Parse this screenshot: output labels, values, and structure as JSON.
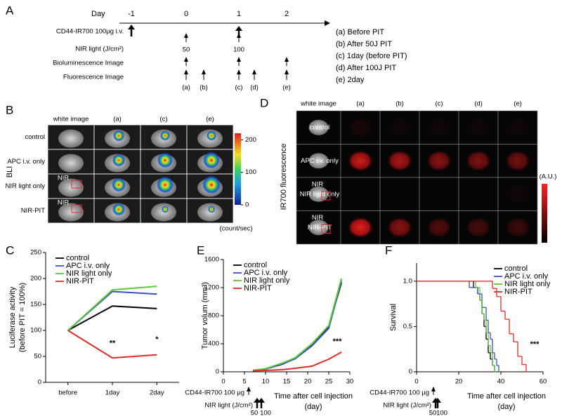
{
  "panel_a": {
    "label": "A",
    "day_label": "Day",
    "days": [
      "-1",
      "0",
      "1",
      "2"
    ],
    "rows": [
      "CD44-IR700 100µg i.v.",
      "NIR light (J/cm²)",
      "Bioluminescence Image",
      "Fluorescence Image"
    ],
    "doses": [
      "50",
      "100"
    ],
    "images": [
      "(a)",
      "(b)",
      "(c)",
      "(d)",
      "(e)"
    ],
    "legend": [
      "(a) Before PIT",
      "(b) After 50J PIT",
      "(c) 1day (before PIT)",
      "(d) After 100J PIT",
      "(e) 2day"
    ]
  },
  "panel_b": {
    "label": "B",
    "side_label": "BLI",
    "columns": [
      "white image",
      "(a)",
      "(c)",
      "(e)"
    ],
    "rows": [
      "control",
      "APC i.v. only",
      "NIR light only",
      "NIR-PIT"
    ],
    "region_label": "NIR",
    "colorbar_lim": [
      0,
      220
    ],
    "colorbar_ticks": [
      200,
      100,
      0
    ],
    "colorbar_unit": "(count/sec)"
  },
  "panel_d": {
    "label": "D",
    "side_label": "IR700 fluorescence",
    "columns": [
      "white image",
      "(a)",
      "(b)",
      "(c)",
      "(d)",
      "(e)"
    ],
    "rows": [
      "control",
      "APC i.v. only",
      "NIR light only",
      "NIR-PIT"
    ],
    "region_label": "NIR",
    "colorbar_unit": "(A.U.)"
  },
  "chart_data": [
    {
      "type": "line",
      "label": "C",
      "categories": [
        "before",
        "1day",
        "2day"
      ],
      "ylabel": [
        "Luciferase activity",
        "(before PIT = 100%)"
      ],
      "ylim": [
        0,
        250
      ],
      "yticks": [
        0,
        50,
        100,
        150,
        200,
        250
      ],
      "legend": "upper left",
      "series": [
        {
          "name": "control",
          "color": "#000000",
          "values": [
            100,
            147,
            142
          ]
        },
        {
          "name": "APC i.v. only",
          "color": "#3c4fc4",
          "values": [
            100,
            175,
            170
          ]
        },
        {
          "name": "NIR light only",
          "color": "#5cc83c",
          "values": [
            100,
            178,
            185
          ]
        },
        {
          "name": "NIR-PIT",
          "color": "#e02a2a",
          "values": [
            100,
            47,
            53
          ]
        }
      ],
      "annotations": [
        {
          "text": "**",
          "x": "1day",
          "y": 75
        },
        {
          "text": "*",
          "x": "2day",
          "y": 82
        }
      ]
    },
    {
      "type": "line",
      "label": "E",
      "x": [
        7,
        10,
        14,
        17,
        21,
        25,
        28
      ],
      "ylabel": [
        "Tumor volum (mm³)"
      ],
      "xlabel": [
        "Time after cell injection",
        "(day)"
      ],
      "xlim": [
        0,
        30
      ],
      "xticks": [
        0,
        5,
        10,
        15,
        20,
        25,
        30
      ],
      "ylim": [
        0,
        1600
      ],
      "yticks": [
        0,
        400,
        800,
        1200,
        1600
      ],
      "legend": "upper left",
      "series": [
        {
          "name": "control",
          "color": "#000000",
          "values": [
            20,
            40,
            110,
            190,
            380,
            650,
            1270
          ]
        },
        {
          "name": "APC i.v. only",
          "color": "#3c4fc4",
          "values": [
            20,
            40,
            115,
            185,
            370,
            620,
            1300
          ]
        },
        {
          "name": "NIR light only",
          "color": "#5cc83c",
          "values": [
            20,
            45,
            125,
            200,
            400,
            660,
            1330
          ]
        },
        {
          "name": "NIR-PIT",
          "color": "#e02a2a",
          "values": [
            15,
            20,
            30,
            50,
            80,
            180,
            280
          ]
        }
      ],
      "annotations": [
        {
          "text": "***",
          "x": 27,
          "y": 430
        }
      ],
      "schedule": {
        "injection_label": "CD44-IR700 100 µg",
        "light_label": "NIR light (J/cm²)",
        "injection_day": 6,
        "light_days": [
          8,
          9
        ],
        "light_doses": [
          "50",
          "100"
        ]
      }
    },
    {
      "type": "step",
      "label": "F",
      "ylabel": [
        "Survival"
      ],
      "xlabel": [
        "Time after cell injection",
        "(day)"
      ],
      "xlim": [
        0,
        60
      ],
      "xticks": [
        0,
        20,
        40,
        60
      ],
      "ylim": [
        0,
        1.2
      ],
      "yticks": [
        0,
        0.5,
        {
          "value": 1,
          "label": "1.0"
        }
      ],
      "legend": "upper right",
      "series": [
        {
          "name": "control",
          "color": "#000000",
          "x": [
            0,
            27,
            29,
            30,
            31,
            32,
            33,
            34,
            35,
            36,
            37
          ],
          "values": [
            1,
            0.93,
            0.86,
            0.79,
            0.64,
            0.5,
            0.36,
            0.21,
            0.14,
            0.07,
            0
          ]
        },
        {
          "name": "APC i.v. only",
          "color": "#3c4fc4",
          "x": [
            0,
            25,
            29,
            31,
            33,
            34,
            35,
            36,
            37,
            38,
            39
          ],
          "values": [
            1,
            0.93,
            0.86,
            0.71,
            0.57,
            0.43,
            0.36,
            0.21,
            0.14,
            0.07,
            0
          ]
        },
        {
          "name": "NIR light only",
          "color": "#5cc83c",
          "x": [
            0,
            28,
            30,
            31,
            32,
            33,
            34,
            35,
            36,
            37
          ],
          "values": [
            1,
            0.93,
            0.79,
            0.64,
            0.57,
            0.43,
            0.29,
            0.21,
            0.07,
            0
          ]
        },
        {
          "name": "NIR-PIT",
          "color": "#e02a2a",
          "x": [
            0,
            36,
            38,
            40,
            42,
            44,
            46,
            48,
            50,
            52
          ],
          "values": [
            1,
            0.92,
            0.83,
            0.67,
            0.58,
            0.42,
            0.33,
            0.17,
            0.08,
            0
          ]
        }
      ],
      "annotations": [
        {
          "text": "***",
          "x": 56,
          "y": 0.3
        }
      ],
      "schedule": {
        "injection_label": "CD44-IR700 100 µg",
        "light_label": "NIR light (J/cm²)",
        "injection_day": 8,
        "light_days": [
          9,
          10
        ],
        "light_doses": [
          "50",
          "100"
        ]
      }
    }
  ]
}
